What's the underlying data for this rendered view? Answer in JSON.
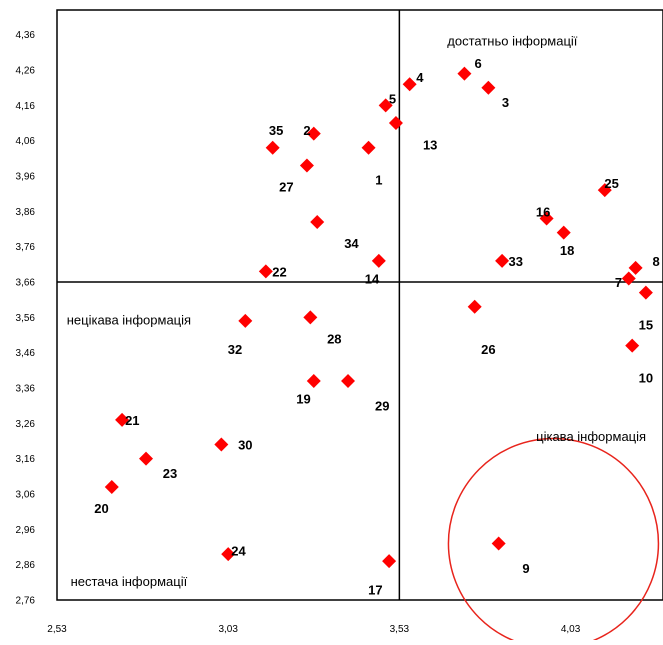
{
  "chart_data": {
    "type": "scatter",
    "title": "",
    "xlabel": "",
    "ylabel": "",
    "xlim": [
      2.53,
      4.3
    ],
    "ylim": [
      2.76,
      4.43
    ],
    "xticks": [
      2.53,
      3.03,
      3.53,
      4.03
    ],
    "xtick_labels": [
      "2,53",
      "3,03",
      "3,53",
      "4,03"
    ],
    "yticks": [
      2.76,
      2.86,
      2.96,
      3.06,
      3.16,
      3.26,
      3.36,
      3.46,
      3.56,
      3.66,
      3.76,
      3.86,
      3.96,
      4.06,
      4.16,
      4.26,
      4.36
    ],
    "ytick_labels": [
      "2,76",
      "2,86",
      "2,96",
      "3,06",
      "3,16",
      "3,26",
      "3,36",
      "3,46",
      "3,56",
      "3,66",
      "3,76",
      "3,86",
      "3,96",
      "4,06",
      "4,16",
      "4,26",
      "4,36"
    ],
    "divider_x": 3.53,
    "divider_y": 3.66,
    "grid": false,
    "marker_color": "#ff0000",
    "circle_color": "#e8241c",
    "circle_center": [
      3.98,
      2.92
    ],
    "quadrant_labels": [
      {
        "text": "достатньо інформації",
        "x": 3.86,
        "y": 4.33
      },
      {
        "text": "нецікава інформація",
        "x": 2.74,
        "y": 3.54
      },
      {
        "text": "нестача інформації",
        "x": 2.74,
        "y": 2.8
      },
      {
        "text": "цікава інформація",
        "x": 4.09,
        "y": 3.21
      }
    ],
    "points": [
      {
        "id": "1",
        "x": 3.44,
        "y": 4.04,
        "label_x": 3.47,
        "label_y": 3.95
      },
      {
        "id": "2",
        "x": 3.28,
        "y": 4.08,
        "label_x": 3.26,
        "label_y": 4.09
      },
      {
        "id": "3",
        "x": 3.79,
        "y": 4.21,
        "label_x": 3.84,
        "label_y": 4.17
      },
      {
        "id": "4",
        "x": 3.56,
        "y": 4.22,
        "label_x": 3.59,
        "label_y": 4.24
      },
      {
        "id": "5",
        "x": 3.49,
        "y": 4.16,
        "label_x": 3.51,
        "label_y": 4.18
      },
      {
        "id": "6",
        "x": 3.72,
        "y": 4.25,
        "label_x": 3.76,
        "label_y": 4.28
      },
      {
        "id": "7",
        "x": 4.2,
        "y": 3.67,
        "label_x": 4.17,
        "label_y": 3.66
      },
      {
        "id": "8",
        "x": 4.22,
        "y": 3.7,
        "label_x": 4.28,
        "label_y": 3.72
      },
      {
        "id": "9",
        "x": 3.82,
        "y": 2.92,
        "label_x": 3.9,
        "label_y": 2.85
      },
      {
        "id": "10",
        "x": 4.21,
        "y": 3.48,
        "label_x": 4.25,
        "label_y": 3.39
      },
      {
        "id": "13",
        "x": 3.52,
        "y": 4.11,
        "label_x": 3.62,
        "label_y": 4.05
      },
      {
        "id": "14",
        "x": 3.47,
        "y": 3.72,
        "label_x": 3.45,
        "label_y": 3.67
      },
      {
        "id": "15",
        "x": 4.25,
        "y": 3.63,
        "label_x": 4.25,
        "label_y": 3.54
      },
      {
        "id": "16",
        "x": 3.96,
        "y": 3.84,
        "label_x": 3.95,
        "label_y": 3.86
      },
      {
        "id": "17",
        "x": 3.5,
        "y": 2.87,
        "label_x": 3.46,
        "label_y": 2.79
      },
      {
        "id": "18",
        "x": 4.01,
        "y": 3.8,
        "label_x": 4.02,
        "label_y": 3.75
      },
      {
        "id": "19",
        "x": 3.28,
        "y": 3.38,
        "label_x": 3.25,
        "label_y": 3.33
      },
      {
        "id": "20",
        "x": 2.69,
        "y": 3.08,
        "label_x": 2.66,
        "label_y": 3.02
      },
      {
        "id": "21",
        "x": 2.72,
        "y": 3.27,
        "label_x": 2.75,
        "label_y": 3.27
      },
      {
        "id": "22",
        "x": 3.14,
        "y": 3.69,
        "label_x": 3.18,
        "label_y": 3.69
      },
      {
        "id": "23",
        "x": 2.79,
        "y": 3.16,
        "label_x": 2.86,
        "label_y": 3.12
      },
      {
        "id": "24",
        "x": 3.03,
        "y": 2.89,
        "label_x": 3.06,
        "label_y": 2.9
      },
      {
        "id": "25",
        "x": 4.13,
        "y": 3.92,
        "label_x": 4.15,
        "label_y": 3.94
      },
      {
        "id": "26",
        "x": 3.75,
        "y": 3.59,
        "label_x": 3.79,
        "label_y": 3.47
      },
      {
        "id": "27",
        "x": 3.26,
        "y": 3.99,
        "label_x": 3.2,
        "label_y": 3.93
      },
      {
        "id": "28",
        "x": 3.27,
        "y": 3.56,
        "label_x": 3.34,
        "label_y": 3.5
      },
      {
        "id": "29",
        "x": 3.38,
        "y": 3.38,
        "label_x": 3.48,
        "label_y": 3.31
      },
      {
        "id": "30",
        "x": 3.01,
        "y": 3.2,
        "label_x": 3.08,
        "label_y": 3.2
      },
      {
        "id": "32",
        "x": 3.08,
        "y": 3.55,
        "label_x": 3.05,
        "label_y": 3.47
      },
      {
        "id": "33",
        "x": 3.83,
        "y": 3.72,
        "label_x": 3.87,
        "label_y": 3.72
      },
      {
        "id": "34",
        "x": 3.29,
        "y": 3.83,
        "label_x": 3.39,
        "label_y": 3.77
      },
      {
        "id": "35",
        "x": 3.16,
        "y": 4.04,
        "label_x": 3.17,
        "label_y": 4.09
      }
    ]
  }
}
